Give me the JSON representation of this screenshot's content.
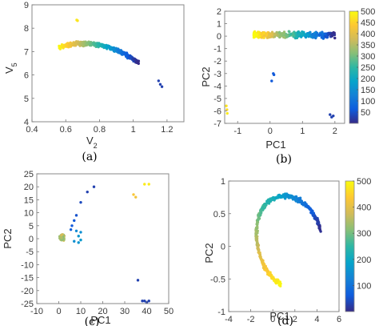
{
  "colormap": [
    "#352a87",
    "#0f5cdd",
    "#1481d6",
    "#06a4ca",
    "#2eb7a4",
    "#87bf77",
    "#d1bb59",
    "#fec832",
    "#f9fb0e"
  ],
  "chart_data": [
    {
      "id": "a",
      "type": "scatter",
      "caption": "(a)",
      "xlabel": "V",
      "xlabel_sub": "2",
      "ylabel": "V",
      "ylabel_sub": "5",
      "xlim": [
        0.4,
        1.3
      ],
      "ylim": [
        4,
        9
      ],
      "xticks": [
        0.4,
        0.6,
        0.8,
        1,
        1.2
      ],
      "xtick_labels": [
        "0.4",
        "0.6",
        "0.8",
        "1",
        "1.2"
      ],
      "yticks": [
        4,
        5,
        6,
        7,
        8,
        9
      ],
      "ytick_labels": [
        "4",
        "5",
        "6",
        "7",
        "8",
        "9"
      ],
      "clim": [
        0,
        500
      ],
      "curve": {
        "param": "quadratic",
        "vertex_x": 0.71,
        "vertex_y": 7.35,
        "a": -27,
        "x_start": 0.56,
        "x_end": 1.03,
        "spread": 0.12
      },
      "points": [
        [
          0.665,
          8.35,
          480
        ],
        [
          0.67,
          8.32,
          470
        ],
        [
          1.15,
          5.75,
          30
        ],
        [
          1.16,
          5.6,
          30
        ],
        [
          1.17,
          5.5,
          30
        ]
      ]
    },
    {
      "id": "b",
      "type": "scatter",
      "caption": "(b)",
      "xlabel": "PC1",
      "ylabel": "PC2",
      "xlim": [
        -1.4,
        2.3
      ],
      "ylim": [
        -7,
        2
      ],
      "xticks": [
        -1,
        0,
        1,
        2
      ],
      "xtick_labels": [
        "-1",
        "0",
        "1",
        "2"
      ],
      "yticks": [
        -7,
        -6,
        -5,
        -4,
        -3,
        -2,
        -1,
        0,
        1,
        2
      ],
      "ytick_labels": [
        "-7",
        "-6",
        "-5",
        "-4",
        "-3",
        "-2",
        "-1",
        "0",
        "1",
        "2"
      ],
      "clim": [
        0,
        500
      ],
      "band": {
        "y_center": 0.1,
        "x_start": -0.5,
        "x_end": 2.0,
        "spread": 0.35
      },
      "points": [
        [
          -1.35,
          -5.6,
          470
        ],
        [
          -1.33,
          -5.9,
          460
        ],
        [
          -1.32,
          -6.2,
          480
        ],
        [
          0.1,
          -3.0,
          60
        ],
        [
          0.12,
          -3.1,
          60
        ],
        [
          0.05,
          -3.6,
          60
        ],
        [
          1.85,
          -6.3,
          30
        ],
        [
          1.9,
          -6.5,
          30
        ],
        [
          1.95,
          -6.4,
          30
        ]
      ],
      "colorbar": {
        "ticks": [
          50,
          100,
          150,
          200,
          250,
          300,
          350,
          400,
          450,
          500
        ],
        "tick_labels": [
          "50",
          "100",
          "150",
          "200",
          "250",
          "300",
          "350",
          "400",
          "450",
          "500"
        ]
      }
    },
    {
      "id": "c",
      "type": "scatter",
      "caption": "(c)",
      "xlabel": "PC1",
      "ylabel": "PC2",
      "xlim": [
        -10,
        50
      ],
      "ylim": [
        -25,
        25
      ],
      "xticks": [
        -10,
        0,
        10,
        20,
        30,
        40,
        50
      ],
      "xtick_labels": [
        "-10",
        "0",
        "10",
        "20",
        "30",
        "40",
        "50"
      ],
      "yticks": [
        -25,
        -20,
        -15,
        -10,
        -5,
        0,
        5,
        10,
        15,
        20,
        25
      ],
      "ytick_labels": [
        "-25",
        "-20",
        "-15",
        "-10",
        "-5",
        "0",
        "5",
        "10",
        "15",
        "20",
        "25"
      ],
      "clim": [
        0,
        500
      ],
      "cluster": {
        "x_center": 1.5,
        "y_center": 0.5,
        "spread": 1.2
      },
      "points": [
        [
          16,
          20,
          30
        ],
        [
          13,
          18,
          30
        ],
        [
          10,
          14,
          40
        ],
        [
          8,
          9,
          50
        ],
        [
          7,
          7,
          60
        ],
        [
          6,
          5,
          60
        ],
        [
          5.5,
          3.5,
          70
        ],
        [
          8,
          3,
          140
        ],
        [
          9,
          1,
          160
        ],
        [
          10,
          2.5,
          150
        ],
        [
          7,
          -1,
          150
        ],
        [
          9,
          -1.5,
          160
        ],
        [
          10,
          -0.5,
          170
        ],
        [
          34,
          17,
          430
        ],
        [
          35,
          16,
          420
        ],
        [
          39,
          21,
          480
        ],
        [
          41,
          21,
          480
        ],
        [
          36,
          -16,
          30
        ],
        [
          38,
          -24,
          30
        ],
        [
          39,
          -24,
          30
        ],
        [
          40,
          -24.5,
          30
        ],
        [
          41,
          -24,
          30
        ]
      ]
    },
    {
      "id": "d",
      "type": "scatter",
      "caption": "(d)",
      "xlabel": "PC1",
      "ylabel": "PC2",
      "xlim": [
        -4,
        6
      ],
      "ylim": [
        -1,
        1
      ],
      "xticks": [
        -4,
        -2,
        0,
        2,
        4,
        6
      ],
      "xtick_labels": [
        "-4",
        "-2",
        "0",
        "2",
        "4",
        "6"
      ],
      "yticks": [
        -1,
        -0.5,
        0,
        0.5,
        1
      ],
      "ytick_labels": [
        "-1",
        "-0.5",
        "0",
        "0.5",
        "1"
      ],
      "clim": [
        0,
        500
      ],
      "arc": {
        "cx": 1.3,
        "cy": 0.18,
        "rx": 3.0,
        "ry": 0.5,
        "t_start": 4.5,
        "t_end": 0.15,
        "spread": 0.05
      },
      "colorbar": {
        "ticks": [
          100,
          200,
          300,
          400,
          500
        ],
        "tick_labels": [
          "100",
          "200",
          "300",
          "400",
          "500"
        ]
      }
    }
  ]
}
